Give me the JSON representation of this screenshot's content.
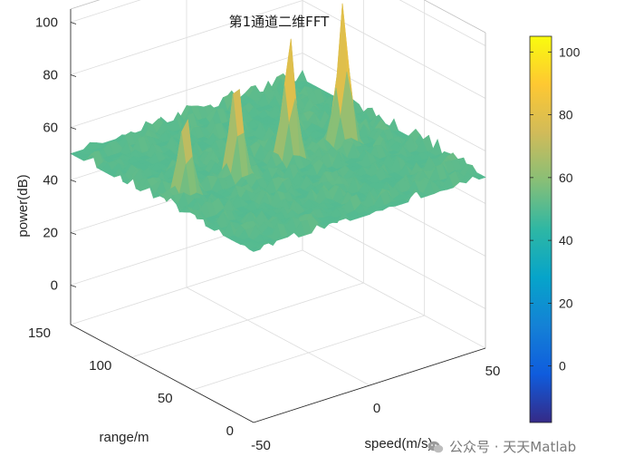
{
  "chart_data": {
    "type": "surface",
    "title": "第1通道二维FFT",
    "xlabel": "speed(m/s)",
    "ylabel": "range/m",
    "zlabel": "power(dB)",
    "xlim": [
      -50,
      50
    ],
    "ylim": [
      0,
      150
    ],
    "zlim": [
      -15,
      105
    ],
    "x_ticks": [
      "-50",
      "0",
      "50"
    ],
    "y_ticks": [
      "0",
      "50",
      "100",
      "150"
    ],
    "z_ticks": [
      "0",
      "20",
      "40",
      "60",
      "80",
      "100"
    ],
    "noise_floor_db": 50,
    "peaks": [
      {
        "speed": -40,
        "range": 75,
        "power": 82
      },
      {
        "speed": -18,
        "range": 75,
        "power": 90
      },
      {
        "speed": 5,
        "range": 75,
        "power": 98
      },
      {
        "speed": 28,
        "range": 75,
        "power": 104
      }
    ],
    "colorbar": {
      "range": [
        -18,
        105
      ],
      "ticks": [
        "0",
        "20",
        "40",
        "60",
        "80",
        "100"
      ],
      "colormap": "parula",
      "colors": [
        "#352a87",
        "#0f5cdd",
        "#1481d6",
        "#06a4ca",
        "#2eb7a4",
        "#87bf77",
        "#d1bb59",
        "#fec832",
        "#f9fb0e"
      ]
    },
    "grid": true
  },
  "watermark": {
    "text": "公众号 · 天天Matlab"
  }
}
